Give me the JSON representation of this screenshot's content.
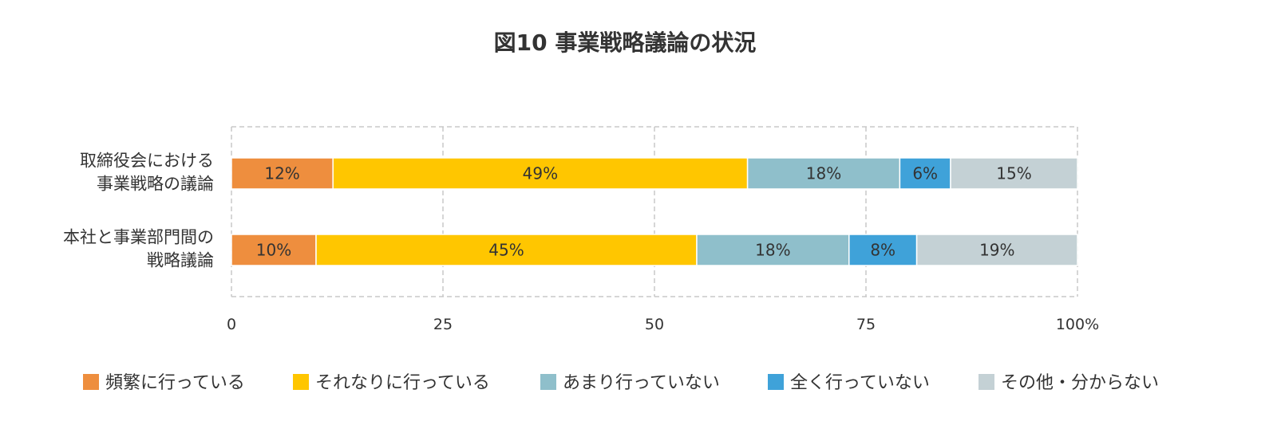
{
  "chart_data": {
    "type": "bar",
    "orientation": "horizontal",
    "stacked": true,
    "title": "図10  事業戦略議論の状況",
    "categories": [
      [
        "取締役会における",
        "事業戦略の議論"
      ],
      [
        "本社と事業部門間の",
        "戦略議論"
      ]
    ],
    "series": [
      {
        "name": "頻繁に行っている",
        "color": "#EE8E3E",
        "values": [
          12,
          10
        ]
      },
      {
        "name": "それなりに行っている",
        "color": "#FFC600",
        "values": [
          49,
          45
        ]
      },
      {
        "name": "あまり行っていない",
        "color": "#8FBFCB",
        "values": [
          18,
          18
        ]
      },
      {
        "name": "全く行っていない",
        "color": "#3FA2D9",
        "values": [
          6,
          8
        ]
      },
      {
        "name": "その他・分からない",
        "color": "#C4D1D5",
        "values": [
          15,
          19
        ]
      }
    ],
    "data_labels": [
      [
        "12%",
        "49%",
        "18%",
        "6%",
        "15%"
      ],
      [
        "10%",
        "45%",
        "18%",
        "8%",
        "19%"
      ]
    ],
    "xlim": [
      0,
      100
    ],
    "xticks": [
      0,
      25,
      50,
      75,
      100
    ],
    "xtick_labels": [
      "0",
      "25",
      "50",
      "75",
      "100%"
    ],
    "xlabel": "",
    "ylabel": "",
    "grid": true,
    "legend_position": "bottom"
  }
}
